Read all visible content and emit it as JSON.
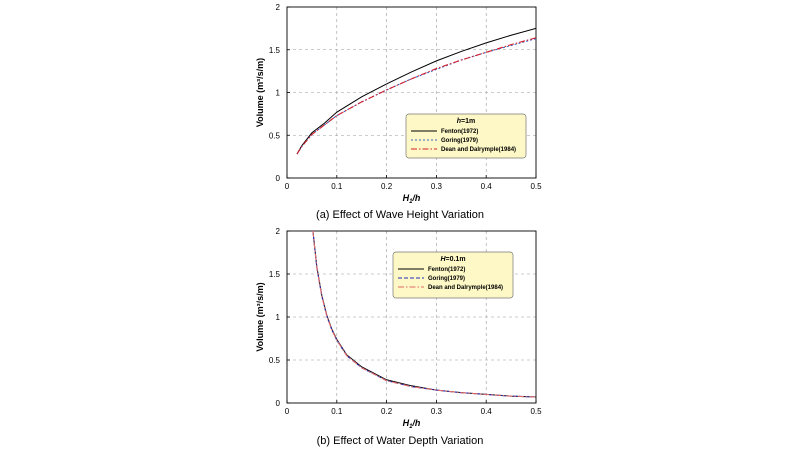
{
  "chart_data": [
    {
      "type": "line",
      "caption": "(a) Effect of Wave Height Variation",
      "xlabel_main": "H",
      "xlabel_sub": "1",
      "xlabel_rest": "/h",
      "ylabel": "Volume (m³/s/m)",
      "xlim": [
        0,
        0.5
      ],
      "ylim": [
        0,
        2
      ],
      "x_ticks": [
        "0",
        "0.1",
        "0.2",
        "0.3",
        "0.4",
        "0.5"
      ],
      "y_ticks": [
        "0",
        "0.5",
        "1",
        "1.5",
        "2"
      ],
      "grid": true,
      "legend": {
        "title_main": "h",
        "title_rest": "=1m",
        "placement": "right-center"
      },
      "series": [
        {
          "name": "Fenton(1972)",
          "color": "#000000",
          "dash": "solid",
          "x": [
            0.02,
            0.03,
            0.05,
            0.075,
            0.1,
            0.15,
            0.2,
            0.25,
            0.3,
            0.35,
            0.4,
            0.45,
            0.5
          ],
          "y": [
            0.28,
            0.38,
            0.53,
            0.64,
            0.77,
            0.95,
            1.1,
            1.24,
            1.37,
            1.48,
            1.58,
            1.67,
            1.75
          ]
        },
        {
          "name": "Goring(1979)",
          "color": "#3a62c4",
          "dash": "dotted",
          "x": [
            0.02,
            0.03,
            0.05,
            0.075,
            0.1,
            0.15,
            0.2,
            0.25,
            0.3,
            0.35,
            0.4,
            0.45,
            0.5
          ],
          "y": [
            0.28,
            0.37,
            0.51,
            0.62,
            0.73,
            0.89,
            1.03,
            1.16,
            1.27,
            1.38,
            1.47,
            1.55,
            1.63
          ]
        },
        {
          "name": "Dean and Dalrymple(1984)",
          "color": "#d21f2b",
          "dash": "dashdot",
          "x": [
            0.02,
            0.03,
            0.05,
            0.075,
            0.1,
            0.15,
            0.2,
            0.25,
            0.3,
            0.35,
            0.4,
            0.45,
            0.5
          ],
          "y": [
            0.28,
            0.37,
            0.51,
            0.62,
            0.73,
            0.89,
            1.03,
            1.16,
            1.28,
            1.38,
            1.47,
            1.56,
            1.64
          ]
        }
      ]
    },
    {
      "type": "line",
      "caption": "(b) Effect of Water Depth Variation",
      "xlabel_main": "H",
      "xlabel_sub": "1",
      "xlabel_rest": "/h",
      "ylabel": "Volume (m³/s/m)",
      "xlim": [
        0,
        0.5
      ],
      "ylim": [
        0,
        2
      ],
      "x_ticks": [
        "0",
        "0.1",
        "0.2",
        "0.3",
        "0.4",
        "0.5"
      ],
      "y_ticks": [
        "0",
        "0.5",
        "1",
        "1.5",
        "2"
      ],
      "grid": true,
      "legend": {
        "title_main": "H",
        "title_rest": "=0.1m",
        "placement": "top-right"
      },
      "series": [
        {
          "name": "Fenton(1972)",
          "color": "#000000",
          "dash": "solid",
          "x": [
            0.052,
            0.06,
            0.07,
            0.08,
            0.09,
            0.1,
            0.12,
            0.15,
            0.2,
            0.25,
            0.3,
            0.35,
            0.4,
            0.45,
            0.5
          ],
          "y": [
            2.0,
            1.58,
            1.25,
            1.02,
            0.86,
            0.74,
            0.56,
            0.42,
            0.27,
            0.2,
            0.15,
            0.12,
            0.1,
            0.08,
            0.07
          ]
        },
        {
          "name": "Goring(1979)",
          "color": "#1f2fb8",
          "dash": "dashed",
          "x": [
            0.052,
            0.06,
            0.07,
            0.08,
            0.09,
            0.1,
            0.12,
            0.15,
            0.2,
            0.25,
            0.3,
            0.35,
            0.4,
            0.45,
            0.5
          ],
          "y": [
            2.0,
            1.57,
            1.24,
            1.01,
            0.85,
            0.73,
            0.55,
            0.41,
            0.26,
            0.19,
            0.15,
            0.12,
            0.1,
            0.08,
            0.07
          ]
        },
        {
          "name": "Dean and Dalrymple(1984)",
          "color": "#e06a6a",
          "dash": "dashdot",
          "x": [
            0.052,
            0.06,
            0.07,
            0.08,
            0.09,
            0.1,
            0.12,
            0.15,
            0.2,
            0.25,
            0.3,
            0.35,
            0.4,
            0.45,
            0.5
          ],
          "y": [
            2.0,
            1.57,
            1.24,
            1.01,
            0.85,
            0.73,
            0.55,
            0.41,
            0.26,
            0.19,
            0.15,
            0.12,
            0.1,
            0.08,
            0.07
          ]
        }
      ]
    }
  ]
}
